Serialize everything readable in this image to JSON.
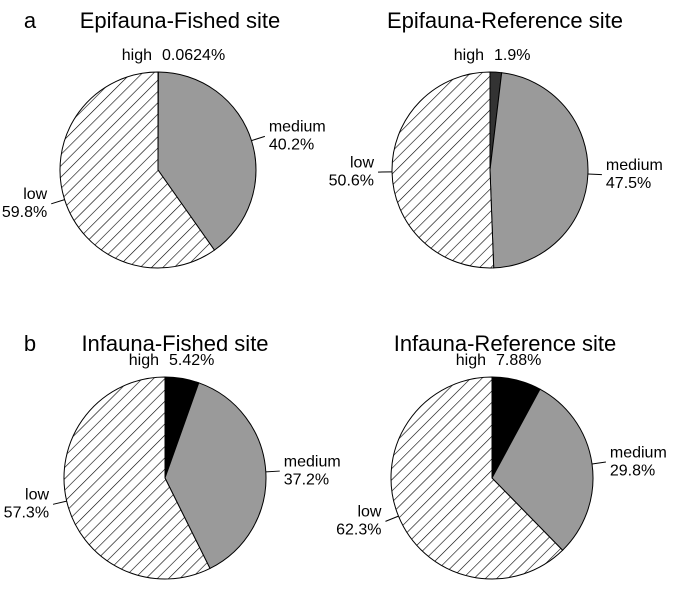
{
  "chart_data": [
    {
      "type": "pie",
      "panel_label": "a",
      "title": "Epifauna-Fished site",
      "categories": [
        "high",
        "medium",
        "low"
      ],
      "values": [
        0.0624,
        40.2,
        59.8
      ],
      "value_labels": [
        "0.0624%",
        "40.2%",
        "59.8%"
      ],
      "colors": [
        "#333333",
        "#9a9a9a",
        "#ffffff"
      ],
      "hatch": [
        false,
        false,
        true
      ]
    },
    {
      "type": "pie",
      "title": "Epifauna-Reference site",
      "categories": [
        "high",
        "medium",
        "low"
      ],
      "values": [
        1.9,
        47.5,
        50.6
      ],
      "value_labels": [
        "1.9%",
        "47.5%",
        "50.6%"
      ],
      "colors": [
        "#333333",
        "#9a9a9a",
        "#ffffff"
      ],
      "hatch": [
        false,
        false,
        true
      ]
    },
    {
      "type": "pie",
      "panel_label": "b",
      "title": "Infauna-Fished site",
      "categories": [
        "high",
        "medium",
        "low"
      ],
      "values": [
        5.42,
        37.2,
        57.3
      ],
      "value_labels": [
        "5.42%",
        "37.2%",
        "57.3%"
      ],
      "colors": [
        "#000000",
        "#9a9a9a",
        "#ffffff"
      ],
      "hatch": [
        false,
        false,
        true
      ]
    },
    {
      "type": "pie",
      "title": "Infauna-Reference site",
      "categories": [
        "high",
        "medium",
        "low"
      ],
      "values": [
        7.88,
        29.8,
        62.3
      ],
      "value_labels": [
        "7.88%",
        "29.8%",
        "62.3%"
      ],
      "colors": [
        "#000000",
        "#9a9a9a",
        "#ffffff"
      ],
      "hatch": [
        false,
        false,
        true
      ]
    }
  ]
}
